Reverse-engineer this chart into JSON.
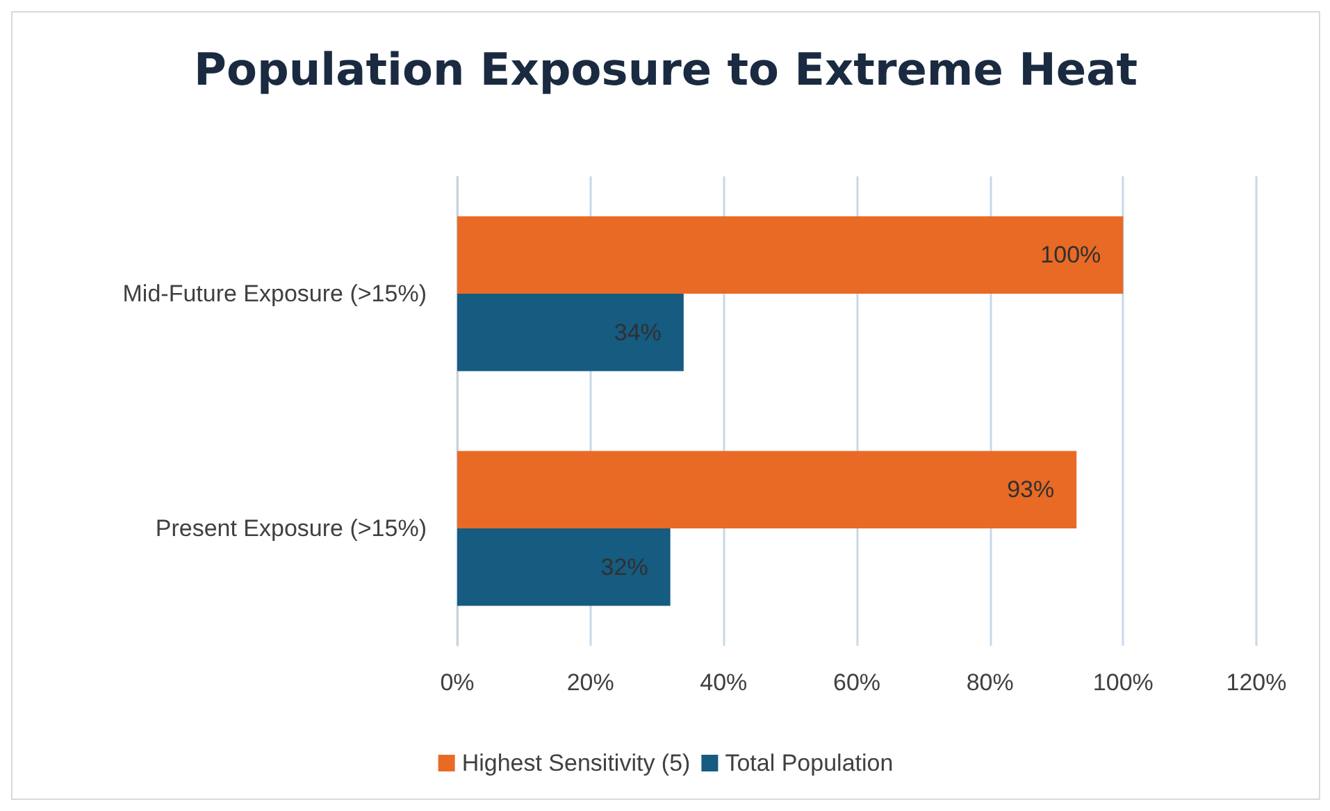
{
  "chart_data": {
    "type": "bar",
    "orientation": "horizontal",
    "title": "Population Exposure to Extreme Heat",
    "categories": [
      "Mid-Future Exposure (>15%)",
      "Present Exposure (>15%)"
    ],
    "series": [
      {
        "name": "Highest Sensitivity (5)",
        "color": "#e96a24",
        "values": [
          100,
          93
        ],
        "value_labels": [
          "100%",
          "93%"
        ]
      },
      {
        "name": "Total Population",
        "color": "#165b80",
        "values": [
          34,
          32
        ],
        "value_labels": [
          "34%",
          "32%"
        ]
      }
    ],
    "xlim": [
      0,
      120
    ],
    "xticks": [
      {
        "value": 0,
        "label": "0%"
      },
      {
        "value": 20,
        "label": "20%"
      },
      {
        "value": 40,
        "label": "40%"
      },
      {
        "value": 60,
        "label": "60%"
      },
      {
        "value": 80,
        "label": "80%"
      },
      {
        "value": 100,
        "label": "100%"
      },
      {
        "value": 120,
        "label": "120%"
      }
    ],
    "grid": "x",
    "legend": "bottom"
  }
}
